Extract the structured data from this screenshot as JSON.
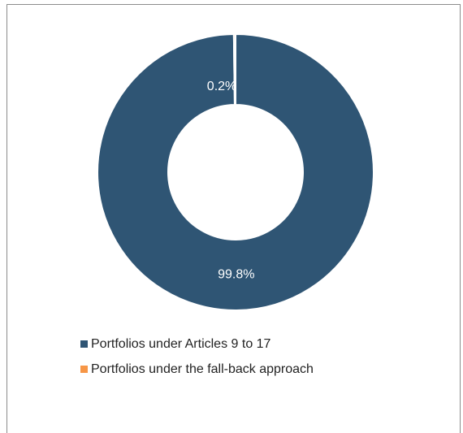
{
  "chart_data": {
    "type": "donut",
    "categories": [
      "Portfolios under Articles 9 to 17",
      "Portfolios under the fall-back approach"
    ],
    "values": [
      99.8,
      0.2
    ],
    "value_labels": [
      "99.8%",
      "0.2%"
    ],
    "colors": [
      "#2f5574",
      "#f79646"
    ],
    "legend": "bottom-left"
  }
}
